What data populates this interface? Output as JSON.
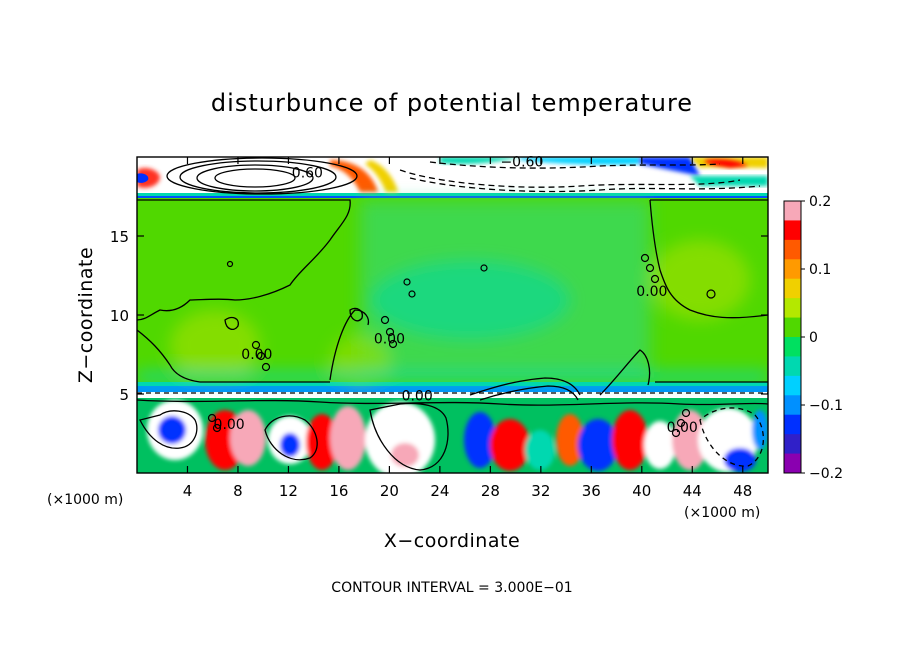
{
  "chart_data": {
    "type": "heatmap",
    "title": "disturbunce of potential temperature",
    "xlabel": "X−coordinate",
    "ylabel": "Z−coordinate",
    "x_unit": "(×1000 m)",
    "x_unit_right": "(×1000 m)",
    "x_ticks": [
      4,
      8,
      12,
      16,
      20,
      24,
      28,
      32,
      36,
      40,
      44,
      48
    ],
    "y_ticks": [
      5,
      10,
      15
    ],
    "xlim": [
      0,
      50
    ],
    "ylim": [
      0,
      20
    ],
    "colorbar": {
      "ticks": [
        "0.2",
        "0.1",
        "0",
        "−0.1",
        "−0.2"
      ],
      "tick_values": [
        0.2,
        0.1,
        0,
        -0.1,
        -0.2
      ],
      "range": [
        -0.2,
        0.2
      ],
      "colors": [
        "#f7a8b8",
        "#ff0000",
        "#ff5a00",
        "#ff9a00",
        "#f0d000",
        "#b4e800",
        "#50d800",
        "#00e060",
        "#00d8b0",
        "#00d0ff",
        "#0090ff",
        "#0030ff",
        "#3020c8",
        "#8a00b0"
      ]
    },
    "contour_labels": [
      {
        "text": "−0.60",
        "x": 30.5,
        "y": 19.4
      },
      {
        "text": "0.60",
        "x": 13.5,
        "y": 18.7
      },
      {
        "text": "0.00",
        "x": 22.2,
        "y": 4.6
      },
      {
        "text": "0.00",
        "x": 9.5,
        "y": 7.2
      },
      {
        "text": "0.00",
        "x": 20.0,
        "y": 8.2
      },
      {
        "text": "0.00",
        "x": 40.8,
        "y": 11.2
      },
      {
        "text": "0.00",
        "x": 7.3,
        "y": 2.8
      },
      {
        "text": "0.00",
        "x": 43.2,
        "y": 2.6
      }
    ],
    "footer": "CONTOUR INTERVAL = 3.000E−01"
  }
}
